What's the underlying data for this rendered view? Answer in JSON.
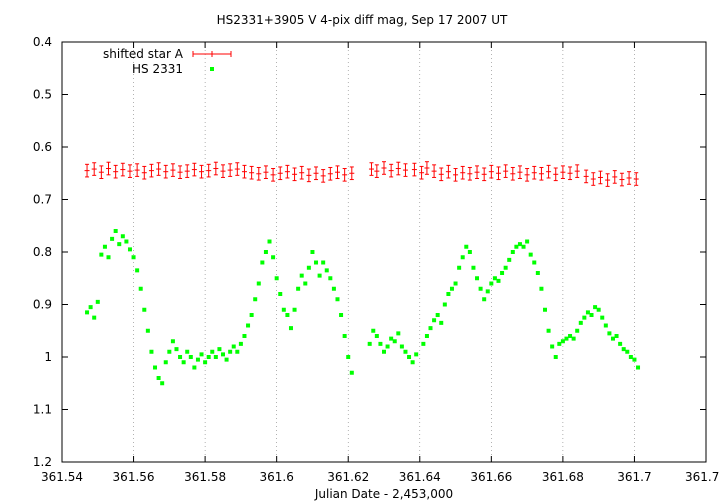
{
  "chart_data": {
    "type": "scatter",
    "title": "HS2331+3905 V 4-pix diff mag, Sep 17 2007 UT",
    "xlabel": "Julian Date - 2,453,000",
    "ylabel": "",
    "xlim": [
      361.54,
      361.72
    ],
    "ylim": [
      1.2,
      0.4
    ],
    "y_inverted": true,
    "grid": "vertical dotted",
    "legend_position": "top-left",
    "x_ticks": [
      361.54,
      361.56,
      361.58,
      361.6,
      361.62,
      361.64,
      361.66,
      361.68,
      361.7,
      361.72
    ],
    "x_tick_labels": [
      "361.54",
      "361.56",
      "361.58",
      "361.6",
      "361.62",
      "361.64",
      "361.66",
      "361.68",
      "361.7",
      "361.72"
    ],
    "y_ticks": [
      0.4,
      0.5,
      0.6,
      0.7,
      0.8,
      0.9,
      1.0,
      1.1,
      1.2
    ],
    "y_tick_labels": [
      "0.4",
      "0.5",
      "0.6",
      "0.7",
      "0.8",
      "0.9",
      "1",
      "1.1",
      "1.2"
    ],
    "series": [
      {
        "name": "shifted star A",
        "color": "#ff0000",
        "marker": "plus with error bars",
        "error": 0.012,
        "points": [
          [
            361.547,
            0.645
          ],
          [
            361.549,
            0.642
          ],
          [
            361.551,
            0.648
          ],
          [
            361.553,
            0.641
          ],
          [
            361.555,
            0.647
          ],
          [
            361.557,
            0.643
          ],
          [
            361.559,
            0.646
          ],
          [
            361.561,
            0.644
          ],
          [
            361.563,
            0.649
          ],
          [
            361.565,
            0.645
          ],
          [
            361.567,
            0.642
          ],
          [
            361.569,
            0.647
          ],
          [
            361.571,
            0.644
          ],
          [
            361.573,
            0.648
          ],
          [
            361.575,
            0.646
          ],
          [
            361.577,
            0.643
          ],
          [
            361.579,
            0.647
          ],
          [
            361.581,
            0.645
          ],
          [
            361.583,
            0.641
          ],
          [
            361.585,
            0.646
          ],
          [
            361.587,
            0.644
          ],
          [
            361.589,
            0.642
          ],
          [
            361.591,
            0.647
          ],
          [
            361.593,
            0.649
          ],
          [
            361.595,
            0.651
          ],
          [
            361.597,
            0.648
          ],
          [
            361.599,
            0.653
          ],
          [
            361.601,
            0.65
          ],
          [
            361.603,
            0.647
          ],
          [
            361.605,
            0.652
          ],
          [
            361.607,
            0.649
          ],
          [
            361.609,
            0.654
          ],
          [
            361.611,
            0.65
          ],
          [
            361.613,
            0.655
          ],
          [
            361.615,
            0.651
          ],
          [
            361.617,
            0.648
          ],
          [
            361.619,
            0.653
          ],
          [
            361.621,
            0.65
          ],
          [
            361.6265,
            0.642
          ],
          [
            361.628,
            0.646
          ],
          [
            361.63,
            0.64
          ],
          [
            361.632,
            0.645
          ],
          [
            361.634,
            0.641
          ],
          [
            361.636,
            0.644
          ],
          [
            361.6385,
            0.643
          ],
          [
            361.6405,
            0.649
          ],
          [
            361.642,
            0.64
          ],
          [
            361.644,
            0.646
          ],
          [
            361.646,
            0.652
          ],
          [
            361.648,
            0.647
          ],
          [
            361.65,
            0.653
          ],
          [
            361.652,
            0.649
          ],
          [
            361.654,
            0.651
          ],
          [
            361.656,
            0.648
          ],
          [
            361.658,
            0.652
          ],
          [
            361.66,
            0.647
          ],
          [
            361.662,
            0.65
          ],
          [
            361.664,
            0.646
          ],
          [
            361.666,
            0.651
          ],
          [
            361.668,
            0.648
          ],
          [
            361.67,
            0.653
          ],
          [
            361.672,
            0.649
          ],
          [
            361.674,
            0.651
          ],
          [
            361.676,
            0.647
          ],
          [
            361.678,
            0.652
          ],
          [
            361.68,
            0.648
          ],
          [
            361.682,
            0.65
          ],
          [
            361.684,
            0.646
          ],
          [
            361.6865,
            0.656
          ],
          [
            361.6885,
            0.661
          ],
          [
            361.6905,
            0.658
          ],
          [
            361.6925,
            0.663
          ],
          [
            361.6945,
            0.657
          ],
          [
            361.6965,
            0.662
          ],
          [
            361.6985,
            0.659
          ],
          [
            361.7005,
            0.661
          ]
        ]
      },
      {
        "name": "HS 2331",
        "color": "#00ff00",
        "marker": "square",
        "points": [
          [
            361.547,
            0.915
          ],
          [
            361.548,
            0.905
          ],
          [
            361.549,
            0.925
          ],
          [
            361.55,
            0.895
          ],
          [
            361.551,
            0.805
          ],
          [
            361.552,
            0.79
          ],
          [
            361.553,
            0.81
          ],
          [
            361.554,
            0.775
          ],
          [
            361.555,
            0.76
          ],
          [
            361.556,
            0.785
          ],
          [
            361.557,
            0.77
          ],
          [
            361.558,
            0.78
          ],
          [
            361.559,
            0.795
          ],
          [
            361.56,
            0.81
          ],
          [
            361.561,
            0.835
          ],
          [
            361.562,
            0.87
          ],
          [
            361.563,
            0.91
          ],
          [
            361.564,
            0.95
          ],
          [
            361.565,
            0.99
          ],
          [
            361.566,
            1.02
          ],
          [
            361.567,
            1.04
          ],
          [
            361.568,
            1.05
          ],
          [
            361.569,
            1.01
          ],
          [
            361.57,
            0.99
          ],
          [
            361.571,
            0.97
          ],
          [
            361.572,
            0.985
          ],
          [
            361.573,
            1.0
          ],
          [
            361.574,
            1.01
          ],
          [
            361.575,
            0.99
          ],
          [
            361.576,
            1.0
          ],
          [
            361.577,
            1.02
          ],
          [
            361.578,
            1.005
          ],
          [
            361.579,
            0.995
          ],
          [
            361.58,
            1.01
          ],
          [
            361.581,
            1.0
          ],
          [
            361.582,
            0.99
          ],
          [
            361.583,
            1.0
          ],
          [
            361.584,
            0.985
          ],
          [
            361.585,
            0.995
          ],
          [
            361.586,
            1.005
          ],
          [
            361.587,
            0.99
          ],
          [
            361.588,
            0.98
          ],
          [
            361.589,
            0.99
          ],
          [
            361.59,
            0.975
          ],
          [
            361.591,
            0.96
          ],
          [
            361.592,
            0.94
          ],
          [
            361.593,
            0.92
          ],
          [
            361.594,
            0.89
          ],
          [
            361.595,
            0.86
          ],
          [
            361.596,
            0.82
          ],
          [
            361.597,
            0.8
          ],
          [
            361.598,
            0.78
          ],
          [
            361.599,
            0.81
          ],
          [
            361.6,
            0.85
          ],
          [
            361.601,
            0.88
          ],
          [
            361.602,
            0.91
          ],
          [
            361.603,
            0.92
          ],
          [
            361.604,
            0.945
          ],
          [
            361.605,
            0.91
          ],
          [
            361.606,
            0.87
          ],
          [
            361.607,
            0.845
          ],
          [
            361.608,
            0.86
          ],
          [
            361.609,
            0.83
          ],
          [
            361.61,
            0.8
          ],
          [
            361.611,
            0.82
          ],
          [
            361.612,
            0.845
          ],
          [
            361.613,
            0.82
          ],
          [
            361.614,
            0.835
          ],
          [
            361.615,
            0.85
          ],
          [
            361.616,
            0.87
          ],
          [
            361.617,
            0.89
          ],
          [
            361.618,
            0.92
          ],
          [
            361.619,
            0.96
          ],
          [
            361.62,
            1.0
          ],
          [
            361.621,
            1.03
          ],
          [
            361.626,
            0.975
          ],
          [
            361.627,
            0.95
          ],
          [
            361.628,
            0.96
          ],
          [
            361.629,
            0.975
          ],
          [
            361.63,
            0.99
          ],
          [
            361.631,
            0.98
          ],
          [
            361.632,
            0.965
          ],
          [
            361.633,
            0.97
          ],
          [
            361.634,
            0.955
          ],
          [
            361.635,
            0.98
          ],
          [
            361.636,
            0.99
          ],
          [
            361.637,
            1.0
          ],
          [
            361.638,
            1.01
          ],
          [
            361.639,
            0.995
          ],
          [
            361.641,
            0.975
          ],
          [
            361.642,
            0.96
          ],
          [
            361.643,
            0.945
          ],
          [
            361.644,
            0.93
          ],
          [
            361.645,
            0.92
          ],
          [
            361.646,
            0.935
          ],
          [
            361.647,
            0.9
          ],
          [
            361.648,
            0.88
          ],
          [
            361.649,
            0.87
          ],
          [
            361.65,
            0.86
          ],
          [
            361.651,
            0.83
          ],
          [
            361.652,
            0.81
          ],
          [
            361.653,
            0.79
          ],
          [
            361.654,
            0.8
          ],
          [
            361.655,
            0.83
          ],
          [
            361.656,
            0.85
          ],
          [
            361.657,
            0.87
          ],
          [
            361.658,
            0.89
          ],
          [
            361.659,
            0.875
          ],
          [
            361.66,
            0.86
          ],
          [
            361.661,
            0.85
          ],
          [
            361.662,
            0.855
          ],
          [
            361.663,
            0.84
          ],
          [
            361.664,
            0.83
          ],
          [
            361.665,
            0.815
          ],
          [
            361.666,
            0.8
          ],
          [
            361.667,
            0.79
          ],
          [
            361.668,
            0.785
          ],
          [
            361.669,
            0.79
          ],
          [
            361.67,
            0.78
          ],
          [
            361.671,
            0.805
          ],
          [
            361.672,
            0.82
          ],
          [
            361.673,
            0.84
          ],
          [
            361.674,
            0.87
          ],
          [
            361.675,
            0.91
          ],
          [
            361.676,
            0.95
          ],
          [
            361.677,
            0.98
          ],
          [
            361.678,
            1.0
          ],
          [
            361.679,
            0.975
          ],
          [
            361.68,
            0.97
          ],
          [
            361.681,
            0.965
          ],
          [
            361.682,
            0.96
          ],
          [
            361.683,
            0.965
          ],
          [
            361.684,
            0.95
          ],
          [
            361.685,
            0.935
          ],
          [
            361.686,
            0.925
          ],
          [
            361.687,
            0.915
          ],
          [
            361.688,
            0.92
          ],
          [
            361.689,
            0.905
          ],
          [
            361.69,
            0.91
          ],
          [
            361.691,
            0.925
          ],
          [
            361.692,
            0.94
          ],
          [
            361.693,
            0.955
          ],
          [
            361.694,
            0.965
          ],
          [
            361.695,
            0.96
          ],
          [
            361.696,
            0.975
          ],
          [
            361.697,
            0.985
          ],
          [
            361.698,
            0.99
          ],
          [
            361.699,
            1.0
          ],
          [
            361.7,
            1.005
          ],
          [
            361.701,
            1.02
          ]
        ]
      }
    ]
  }
}
